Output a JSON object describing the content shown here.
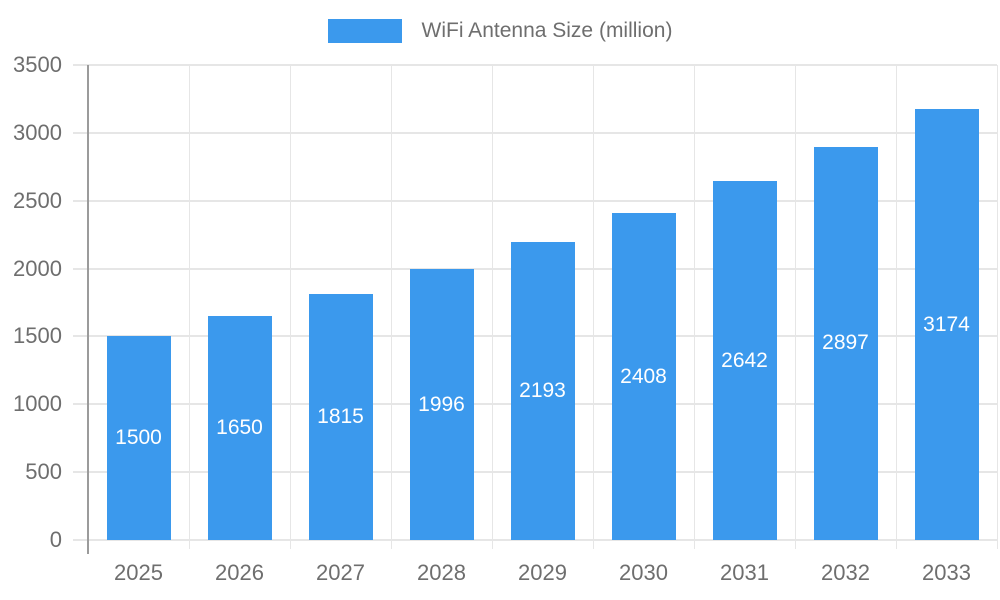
{
  "chart_data": {
    "type": "bar",
    "title": "WiFi Antenna Size (million)",
    "legend": {
      "label": "WiFi Antenna Size (million)",
      "position": "top-center"
    },
    "categories": [
      "2025",
      "2026",
      "2027",
      "2028",
      "2029",
      "2030",
      "2031",
      "2032",
      "2033"
    ],
    "series": [
      {
        "name": "WiFi Antenna Size (million)",
        "values": [
          1500,
          1650,
          1815,
          1996,
          2193,
          2408,
          2642,
          2897,
          3174
        ]
      }
    ],
    "value_labels_shown": true,
    "xlabel": "",
    "ylabel": "",
    "ylim": [
      0,
      3500
    ],
    "yticks": [
      0,
      500,
      1000,
      1500,
      2000,
      2500,
      3000,
      3500
    ],
    "grid": true,
    "legend_position": "top-center",
    "colors": {
      "bar": "#3B99ED",
      "value_label": "#FFFFFF",
      "axis_text": "#6E6E6E",
      "gridline": "#E6E6E6",
      "axis_line": "#9B9B9B"
    }
  }
}
